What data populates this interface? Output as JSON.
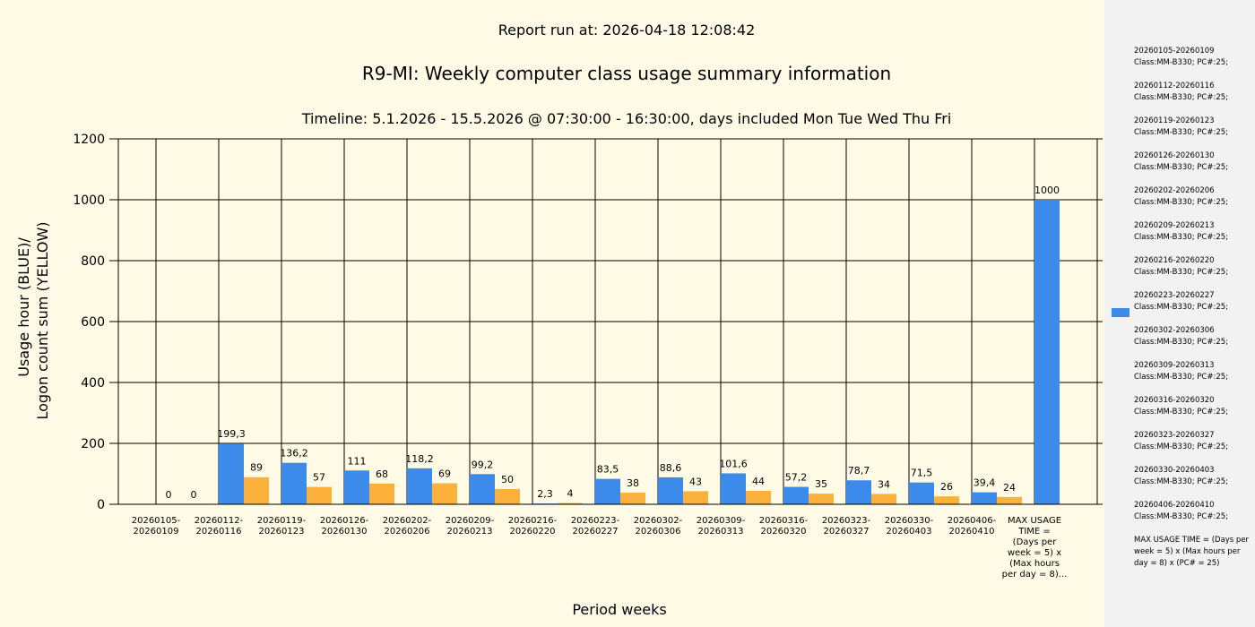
{
  "chart_data": {
    "type": "bar",
    "report_run": "Report run at: 2026-04-18 12:08:42",
    "title": "R9-MI: Weekly computer class usage summary information",
    "subtitle": "Timeline:  5.1.2026  - 15.5.2026  @  07:30:00 -  16:30:00, days included Mon Tue Wed Thu Fri",
    "ylabel_line1": "Usage hour (BLUE)/",
    "ylabel_line2": "Logon count sum (YELLOW)",
    "xlabel": "Period weeks",
    "ylim": [
      0,
      1200
    ],
    "yticks": [
      0,
      200,
      400,
      600,
      800,
      1000,
      1200
    ],
    "grid": true,
    "legend_position": "right",
    "colors": {
      "blue": "#3c8bea",
      "yellow": "#fbb13c"
    },
    "categories": [
      [
        "20260105-",
        "20260109"
      ],
      [
        "20260112-",
        "20260116"
      ],
      [
        "20260119-",
        "20260123"
      ],
      [
        "20260126-",
        "20260130"
      ],
      [
        "20260202-",
        "20260206"
      ],
      [
        "20260209-",
        "20260213"
      ],
      [
        "20260216-",
        "20260220"
      ],
      [
        "20260223-",
        "20260227"
      ],
      [
        "20260302-",
        "20260306"
      ],
      [
        "20260309-",
        "20260313"
      ],
      [
        "20260316-",
        "20260320"
      ],
      [
        "20260323-",
        "20260327"
      ],
      [
        "20260330-",
        "20260403"
      ],
      [
        "20260406-",
        "20260410"
      ],
      [
        "MAX USAGE",
        "TIME =",
        "(Days per",
        "week = 5) x",
        "(Max hours",
        "per day = 8)..."
      ]
    ],
    "series": [
      {
        "values": [
          0,
          199.3,
          136.2,
          111,
          118.2,
          99.2,
          2.3,
          83.5,
          88.6,
          101.6,
          57.2,
          78.7,
          71.5,
          39.4,
          1000
        ],
        "labels": [
          "0",
          "199,3",
          "136,2",
          "111",
          "118,2",
          "99,2",
          "2,3",
          "83,5",
          "88,6",
          "101,6",
          "57,2",
          "78,7",
          "71,5",
          "39,4",
          "1000"
        ]
      },
      {
        "values": [
          0,
          89,
          57,
          68,
          69,
          50,
          4,
          38,
          43,
          44,
          35,
          34,
          26,
          24,
          null
        ],
        "labels": [
          "0",
          "89",
          "57",
          "68",
          "69",
          "50",
          "4",
          "38",
          "43",
          "44",
          "35",
          "34",
          "26",
          "24",
          ""
        ]
      }
    ]
  },
  "legend": {
    "entries": [
      [
        "20260105-20260109",
        "Class:MM-B330; PC#:25;"
      ],
      [
        "20260112-20260116",
        "Class:MM-B330; PC#:25;"
      ],
      [
        "20260119-20260123",
        "Class:MM-B330; PC#:25;"
      ],
      [
        "20260126-20260130",
        "Class:MM-B330; PC#:25;"
      ],
      [
        "20260202-20260206",
        "Class:MM-B330; PC#:25;"
      ],
      [
        "20260209-20260213",
        "Class:MM-B330; PC#:25;"
      ],
      [
        "20260216-20260220",
        "Class:MM-B330; PC#:25;"
      ],
      [
        "20260223-20260227",
        "Class:MM-B330; PC#:25;"
      ],
      [
        "20260302-20260306",
        "Class:MM-B330; PC#:25;"
      ],
      [
        "20260309-20260313",
        "Class:MM-B330; PC#:25;"
      ],
      [
        "20260316-20260320",
        "Class:MM-B330; PC#:25;"
      ],
      [
        "20260323-20260327",
        "Class:MM-B330; PC#:25;"
      ],
      [
        "20260330-20260403",
        "Class:MM-B330; PC#:25;"
      ],
      [
        "20260406-20260410",
        "Class:MM-B330; PC#:25;"
      ]
    ],
    "note": "MAX USAGE TIME =  (Days per week = 5) x (Max hours per day = 8) x (PC# = 25)"
  }
}
